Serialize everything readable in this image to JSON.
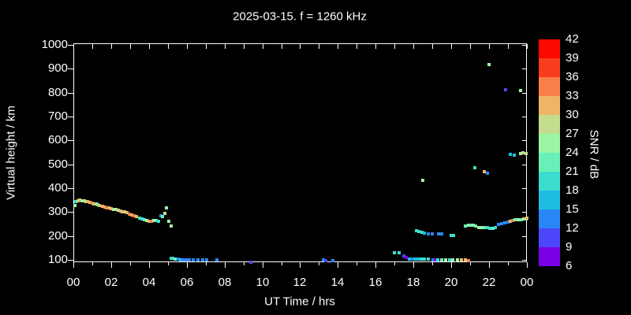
{
  "title": "2025-03-15. f = 1260 kHz",
  "axes": {
    "x": {
      "label": "UT Time / hrs",
      "tick_hours": [
        0,
        2,
        4,
        6,
        8,
        10,
        12,
        14,
        16,
        18,
        20,
        22,
        24
      ],
      "tick_labels": [
        "00",
        "02",
        "04",
        "06",
        "08",
        "10",
        "12",
        "14",
        "16",
        "18",
        "20",
        "22",
        "00"
      ],
      "minor_hours": [
        1,
        3,
        5,
        7,
        9,
        11,
        13,
        15,
        17,
        19,
        21,
        23
      ],
      "range": [
        0,
        24
      ]
    },
    "y": {
      "label": "Virtual height / km",
      "tick_km": [
        100,
        200,
        300,
        400,
        500,
        600,
        700,
        800,
        900,
        1000
      ],
      "tick_labels": [
        "100",
        "200",
        "300",
        "400",
        "500",
        "600",
        "700",
        "800",
        "900",
        "1000"
      ],
      "range": [
        100,
        1000
      ]
    }
  },
  "colorbar": {
    "label": "SNR / dB",
    "tick_labels": [
      "42",
      "39",
      "36",
      "33",
      "30",
      "27",
      "24",
      "21",
      "18",
      "15",
      "12",
      "9",
      "6"
    ],
    "colors_top_to_bottom": [
      "#FA0A00",
      "#FA3C1E",
      "#F98049",
      "#EFB566",
      "#C3DC8E",
      "#9BF5A5",
      "#69F0B9",
      "#3CDCCD",
      "#1EBEE1",
      "#2887F5",
      "#4B46FA",
      "#7A00E8"
    ]
  },
  "chart_data": {
    "type": "scatter",
    "title": "2025-03-15. f = 1260 kHz",
    "xlabel": "UT Time / hrs",
    "ylabel": "Virtual height / km",
    "xlim": [
      0,
      24
    ],
    "ylim": [
      100,
      1000
    ],
    "grid": false,
    "color_scale": {
      "label": "SNR / dB",
      "range": [
        6,
        42
      ],
      "bin_size": 3,
      "palette": {
        "6": "#7A00E8",
        "9": "#4B46FA",
        "12": "#2887F5",
        "15": "#1EBEE1",
        "18": "#3CDCCD",
        "21": "#69F0B9",
        "24": "#9BF5A5",
        "27": "#C3DC8E",
        "30": "#EFB566",
        "33": "#F98049",
        "36": "#FA3C1E",
        "39": "#FA0A00"
      }
    },
    "point_format": "[ut_hour, virtual_height_km, snr_bin_dB]",
    "points": [
      [
        0.02,
        330,
        24
      ],
      [
        0.1,
        348,
        18
      ],
      [
        0.2,
        352,
        27
      ],
      [
        0.3,
        353,
        30
      ],
      [
        0.42,
        352,
        24
      ],
      [
        0.52,
        351,
        27
      ],
      [
        0.62,
        349,
        24
      ],
      [
        0.72,
        346,
        30
      ],
      [
        0.85,
        344,
        30
      ],
      [
        0.95,
        341,
        33
      ],
      [
        1.05,
        338,
        30
      ],
      [
        1.15,
        336,
        24
      ],
      [
        1.25,
        333,
        21
      ],
      [
        1.35,
        331,
        30
      ],
      [
        1.5,
        327,
        30
      ],
      [
        1.62,
        323,
        30
      ],
      [
        1.72,
        321,
        33
      ],
      [
        1.85,
        320,
        30
      ],
      [
        1.98,
        318,
        30
      ],
      [
        2.1,
        316,
        27
      ],
      [
        2.2,
        314,
        24
      ],
      [
        2.32,
        311,
        27
      ],
      [
        2.45,
        309,
        30
      ],
      [
        2.55,
        306,
        30
      ],
      [
        2.68,
        303,
        27
      ],
      [
        2.78,
        300,
        30
      ],
      [
        2.92,
        295,
        33
      ],
      [
        3.05,
        291,
        30
      ],
      [
        3.18,
        288,
        33
      ],
      [
        3.3,
        284,
        30
      ],
      [
        3.45,
        278,
        18
      ],
      [
        3.58,
        274,
        18
      ],
      [
        3.7,
        271,
        21
      ],
      [
        3.82,
        268,
        24
      ],
      [
        3.95,
        266,
        30
      ],
      [
        4.1,
        265,
        33
      ],
      [
        4.22,
        267,
        24
      ],
      [
        4.32,
        269,
        21
      ],
      [
        4.45,
        266,
        18
      ],
      [
        4.6,
        288,
        12
      ],
      [
        4.68,
        285,
        21
      ],
      [
        4.78,
        297,
        27
      ],
      [
        4.9,
        322,
        24
      ],
      [
        5.0,
        266,
        24
      ],
      [
        5.15,
        245,
        24
      ],
      [
        5.12,
        110,
        18
      ],
      [
        5.22,
        110,
        18
      ],
      [
        5.35,
        108,
        21
      ],
      [
        5.5,
        106,
        12
      ],
      [
        5.62,
        105,
        15
      ],
      [
        5.75,
        105,
        12
      ],
      [
        5.92,
        104,
        12
      ],
      [
        6.1,
        104,
        12
      ],
      [
        6.3,
        104,
        12
      ],
      [
        6.55,
        104,
        12
      ],
      [
        6.8,
        104,
        12
      ],
      [
        7.02,
        104,
        12
      ],
      [
        7.55,
        104,
        12
      ],
      [
        9.35,
        95,
        9
      ],
      [
        13.2,
        103,
        12
      ],
      [
        13.32,
        100,
        9
      ],
      [
        13.7,
        101,
        12
      ],
      [
        16.95,
        133,
        18
      ],
      [
        17.2,
        132,
        18
      ],
      [
        17.45,
        121,
        9
      ],
      [
        17.58,
        114,
        6
      ],
      [
        17.75,
        108,
        15
      ],
      [
        17.9,
        108,
        12
      ],
      [
        18.05,
        107,
        15
      ],
      [
        18.2,
        107,
        15
      ],
      [
        18.35,
        107,
        18
      ],
      [
        18.55,
        107,
        18
      ],
      [
        18.75,
        106,
        18
      ],
      [
        19.0,
        104,
        12
      ],
      [
        19.1,
        102,
        6
      ],
      [
        19.25,
        104,
        18
      ],
      [
        19.45,
        102,
        21
      ],
      [
        19.65,
        102,
        24
      ],
      [
        19.85,
        102,
        18
      ],
      [
        20.05,
        102,
        24
      ],
      [
        20.3,
        104,
        24
      ],
      [
        20.5,
        102,
        30
      ],
      [
        20.7,
        102,
        30
      ],
      [
        20.88,
        101,
        33
      ],
      [
        18.1,
        224,
        18
      ],
      [
        18.25,
        222,
        18
      ],
      [
        18.4,
        219,
        18
      ],
      [
        18.55,
        217,
        15
      ],
      [
        18.75,
        213,
        12
      ],
      [
        18.95,
        212,
        12
      ],
      [
        19.3,
        212,
        12
      ],
      [
        19.45,
        211,
        12
      ],
      [
        19.95,
        206,
        18
      ],
      [
        20.08,
        205,
        18
      ],
      [
        20.72,
        246,
        21
      ],
      [
        20.85,
        247,
        24
      ],
      [
        21.0,
        248,
        21
      ],
      [
        21.12,
        247,
        24
      ],
      [
        21.25,
        245,
        21
      ],
      [
        21.4,
        240,
        27
      ],
      [
        21.55,
        238,
        24
      ],
      [
        21.7,
        239,
        21
      ],
      [
        21.85,
        238,
        18
      ],
      [
        22.0,
        236,
        18
      ],
      [
        22.15,
        235,
        21
      ],
      [
        22.3,
        237,
        18
      ],
      [
        22.45,
        252,
        12
      ],
      [
        22.6,
        255,
        12
      ],
      [
        22.78,
        258,
        12
      ],
      [
        22.95,
        262,
        12
      ],
      [
        23.1,
        266,
        30
      ],
      [
        23.22,
        268,
        33
      ],
      [
        23.35,
        271,
        21
      ],
      [
        23.5,
        272,
        24
      ],
      [
        23.65,
        273,
        21
      ],
      [
        23.8,
        274,
        27
      ],
      [
        23.92,
        276,
        21
      ],
      [
        23.95,
        278,
        30
      ],
      [
        18.45,
        438,
        24
      ],
      [
        21.2,
        488,
        18
      ],
      [
        21.7,
        474,
        30
      ],
      [
        21.85,
        466,
        12
      ],
      [
        21.95,
        921,
        24
      ],
      [
        22.85,
        816,
        9
      ],
      [
        23.62,
        813,
        24
      ],
      [
        23.08,
        544,
        15
      ],
      [
        23.28,
        542,
        15
      ],
      [
        23.62,
        549,
        24
      ],
      [
        23.75,
        551,
        27
      ],
      [
        23.9,
        549,
        27
      ]
    ]
  }
}
